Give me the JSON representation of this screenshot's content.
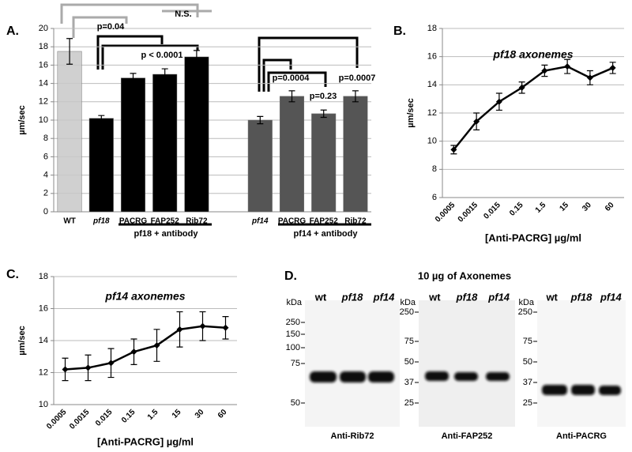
{
  "chart_data": [
    {
      "type": "bar",
      "panel": "A.",
      "y_label": "µm/sec",
      "categories": [
        "WT",
        "pf18",
        "PACRG",
        "FAP252",
        "Rib72",
        null,
        "pf14",
        "PACRG",
        "FAP252",
        "Rib72"
      ],
      "values": [
        17.5,
        10.2,
        14.6,
        15.0,
        16.9,
        null,
        10.0,
        12.6,
        10.7,
        12.6
      ],
      "errors": [
        1.4,
        0.3,
        0.5,
        0.6,
        0.7,
        null,
        0.4,
        0.6,
        0.4,
        0.6
      ],
      "colors": [
        "#c8c8c8",
        "#000000",
        "#000000",
        "#000000",
        "#000000",
        null,
        "#555555",
        "#555555",
        "#555555",
        "#555555"
      ],
      "ylim": [
        0,
        20
      ],
      "yticks": [
        0,
        2,
        4,
        6,
        8,
        10,
        12,
        14,
        16,
        18,
        20
      ],
      "grid": true,
      "group_labels": [
        "pf18 + antibody",
        "pf14 + antibody"
      ],
      "annotations": [
        "p=0.04",
        "N.S.",
        "p < 0.0001",
        "p=0.0004",
        "p=0.23",
        "p=0.0007"
      ]
    },
    {
      "type": "line",
      "panel": "B.",
      "title": "pf18 axonemes",
      "y_label": "µm/sec",
      "x_label": "[Anti-PACRG] µg/ml",
      "categories": [
        "0.0005",
        "0.0015",
        "0.015",
        "0.15",
        "1.5",
        "15",
        "30",
        "60"
      ],
      "values": [
        9.4,
        11.4,
        12.8,
        13.8,
        15.0,
        15.3,
        14.5,
        15.2
      ],
      "errors": [
        0.3,
        0.6,
        0.6,
        0.4,
        0.4,
        0.5,
        0.5,
        0.4
      ],
      "color": "#000000",
      "ylim": [
        6,
        18
      ],
      "yticks": [
        6,
        8,
        10,
        12,
        14,
        16,
        18
      ],
      "grid": true
    },
    {
      "type": "line",
      "panel": "C.",
      "title": "pf14 axonemes",
      "y_label": "µm/sec",
      "x_label": "[Anti-PACRG] µg/ml",
      "categories": [
        "0.0005",
        "0.0015",
        "0.015",
        "0.15",
        "1.5",
        "15",
        "30",
        "60"
      ],
      "values": [
        12.2,
        12.3,
        12.6,
        13.3,
        13.7,
        14.7,
        14.9,
        14.8
      ],
      "errors": [
        0.7,
        0.8,
        0.9,
        0.8,
        1.0,
        1.1,
        0.9,
        0.7
      ],
      "color": "#000000",
      "ylim": [
        10,
        18
      ],
      "yticks": [
        10,
        12,
        14,
        16,
        18
      ],
      "grid": true
    }
  ],
  "panel_d": {
    "panel": "D.",
    "title": "10 µg of Axonemes",
    "blots": [
      {
        "lanes": [
          "wt",
          "pf18",
          "pf14"
        ],
        "unit": "kDa",
        "markers": [
          "250",
          "150",
          "100",
          "75",
          "50"
        ],
        "label": "Anti-Rib72"
      },
      {
        "lanes": [
          "wt",
          "pf18",
          "pf14"
        ],
        "unit": "kDa",
        "markers": [
          "250",
          "75",
          "50",
          "37",
          "25"
        ],
        "label": "Anti-FAP252"
      },
      {
        "lanes": [
          "wt",
          "pf18",
          "pf14"
        ],
        "unit": "kDa",
        "markers": [
          "250",
          "75",
          "50",
          "37",
          "25"
        ],
        "label": "Anti-PACRG"
      }
    ]
  }
}
